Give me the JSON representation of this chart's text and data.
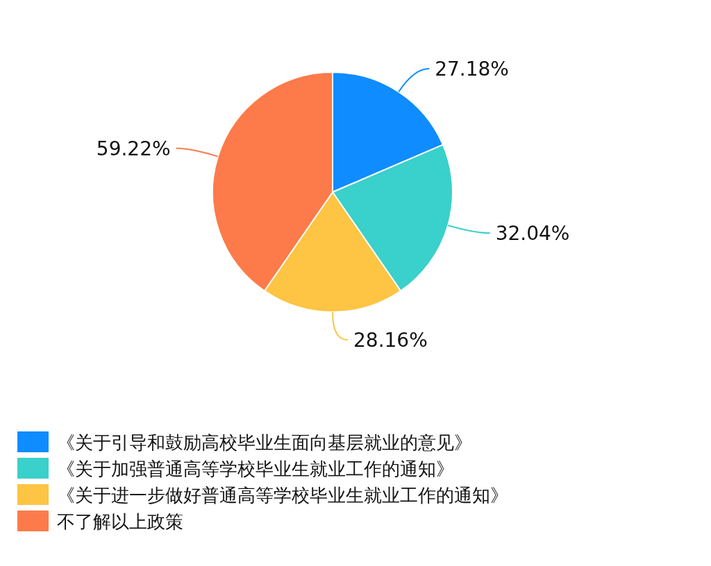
{
  "chart_data": {
    "type": "pie",
    "categories": [
      "《关于引导和鼓励高校毕业生面向基层就业的意见》",
      "《关于加强普通高等学校毕业生就业工作的通知》",
      "《关于进一步做好普通高等学校毕业生就业工作的通知》",
      "不了解以上政策"
    ],
    "values": [
      27.18,
      32.04,
      28.16,
      59.22
    ],
    "colors": [
      "#0f8cff",
      "#3ad0cb",
      "#fec443",
      "#fd7b4a"
    ],
    "value_labels": [
      "27.18%",
      "32.04%",
      "28.16%",
      "59.22%"
    ],
    "legend": "bottom"
  }
}
